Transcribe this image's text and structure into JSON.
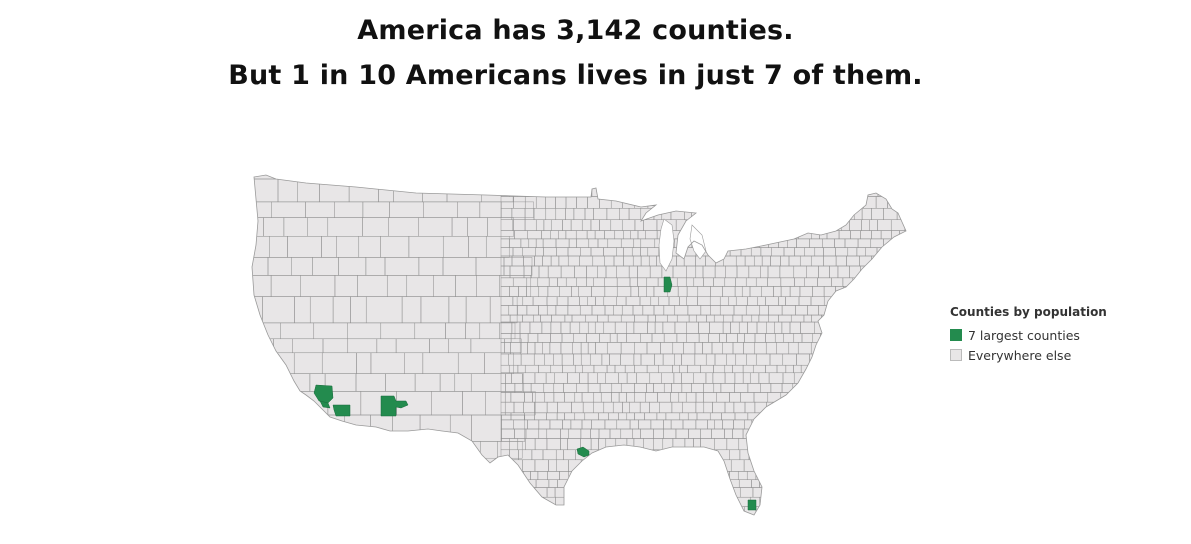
{
  "title": {
    "line1": "America has 3,142 counties.",
    "line2": "But 1 in 10 Americans lives in just 7 of them."
  },
  "legend": {
    "title": "Counties by population",
    "items": [
      {
        "label": "7 largest counties",
        "color": "#238b4e"
      },
      {
        "label": "Everywhere else",
        "color": "#e8e6e7"
      }
    ]
  },
  "colors": {
    "highlight": "#238b4e",
    "base_fill": "#e8e6e7",
    "county_border": "#8f8f8f",
    "title_text": "#111111"
  }
}
